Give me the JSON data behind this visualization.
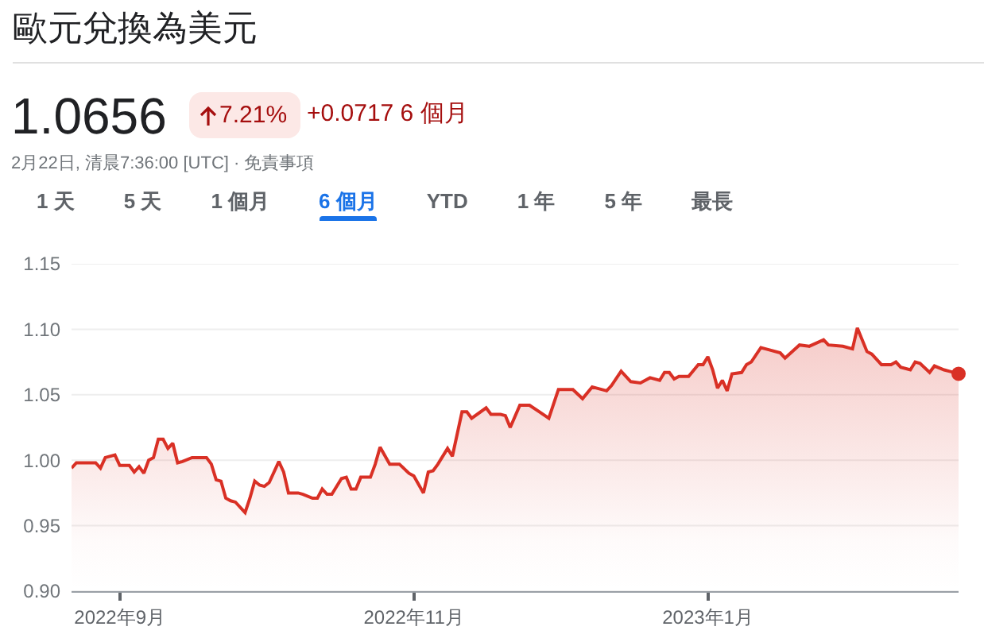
{
  "chart_data": {
    "type": "area",
    "title": "歐元兌換為美元",
    "annotations": [
      "1.0656",
      "7.21%",
      "+0.0717 6 個月",
      "2月22日, 清晨7:36:00 [UTC] · 免責事項",
      "1 天",
      "5 天",
      "1 個月",
      "6 個月",
      "YTD",
      "1 年",
      "5 年",
      "最長"
    ],
    "x": [
      "2022-08-22",
      "2022-08-23",
      "2022-08-24",
      "2022-08-27",
      "2022-08-28",
      "2022-08-29",
      "2022-08-31",
      "2022-09-01",
      "2022-09-03",
      "2022-09-04",
      "2022-09-05",
      "2022-09-06",
      "2022-09-07",
      "2022-09-08",
      "2022-09-09",
      "2022-09-10",
      "2022-09-11",
      "2022-09-12",
      "2022-09-13",
      "2022-09-14",
      "2022-09-16",
      "2022-09-18",
      "2022-09-19",
      "2022-09-20",
      "2022-09-21",
      "2022-09-22",
      "2022-09-23",
      "2022-09-24",
      "2022-09-25",
      "2022-09-27",
      "2022-09-28",
      "2022-09-29",
      "2022-09-30",
      "2022-10-01",
      "2022-10-02",
      "2022-10-04",
      "2022-10-05",
      "2022-10-06",
      "2022-10-08",
      "2022-10-09",
      "2022-10-11",
      "2022-10-12",
      "2022-10-13",
      "2022-10-14",
      "2022-10-15",
      "2022-10-17",
      "2022-10-18",
      "2022-10-19",
      "2022-10-20",
      "2022-10-21",
      "2022-10-23",
      "2022-10-24",
      "2022-10-25",
      "2022-10-27",
      "2022-10-29",
      "2022-10-31",
      "2022-11-01",
      "2022-11-03",
      "2022-11-04",
      "2022-11-05",
      "2022-11-06",
      "2022-11-08",
      "2022-11-09",
      "2022-11-11",
      "2022-11-12",
      "2022-11-13",
      "2022-11-16",
      "2022-11-17",
      "2022-11-19",
      "2022-11-20",
      "2022-11-21",
      "2022-11-23",
      "2022-11-25",
      "2022-11-27",
      "2022-11-29",
      "2022-12-01",
      "2022-12-04",
      "2022-12-06",
      "2022-12-08",
      "2022-12-09",
      "2022-12-11",
      "2022-12-12",
      "2022-12-14",
      "2022-12-16",
      "2022-12-18",
      "2022-12-20",
      "2022-12-22",
      "2022-12-23",
      "2022-12-24",
      "2022-12-25",
      "2022-12-26",
      "2022-12-28",
      "2022-12-30",
      "2022-12-31",
      "2023-01-01",
      "2023-01-02",
      "2023-01-03",
      "2023-01-04",
      "2023-01-05",
      "2023-01-06",
      "2023-01-08",
      "2023-01-09",
      "2023-01-10",
      "2023-01-12",
      "2023-01-13",
      "2023-01-16",
      "2023-01-17",
      "2023-01-20",
      "2023-01-22",
      "2023-01-25",
      "2023-01-26",
      "2023-01-29",
      "2023-01-31",
      "2023-02-01",
      "2023-02-03",
      "2023-02-04",
      "2023-02-06",
      "2023-02-08",
      "2023-02-09",
      "2023-02-10",
      "2023-02-12",
      "2023-02-13",
      "2023-02-14",
      "2023-02-16",
      "2023-02-17",
      "2023-02-19",
      "2023-02-20",
      "2023-02-22"
    ],
    "series": [
      {
        "color": "#d93025",
        "values": [
          0.994,
          0.998,
          0.998,
          0.998,
          0.994,
          1.002,
          1.004,
          0.996,
          0.996,
          0.991,
          0.995,
          0.99,
          1.0,
          1.002,
          1.016,
          1.016,
          1.009,
          1.013,
          0.998,
          0.999,
          1.002,
          1.002,
          1.002,
          0.997,
          0.985,
          0.984,
          0.971,
          0.969,
          0.968,
          0.96,
          0.971,
          0.984,
          0.981,
          0.98,
          0.983,
          0.999,
          0.991,
          0.975,
          0.975,
          0.974,
          0.971,
          0.971,
          0.978,
          0.974,
          0.974,
          0.986,
          0.987,
          0.978,
          0.978,
          0.987,
          0.987,
          0.997,
          1.01,
          0.997,
          0.997,
          0.99,
          0.988,
          0.975,
          0.991,
          0.992,
          0.997,
          1.009,
          1.003,
          1.037,
          1.037,
          1.032,
          1.04,
          1.035,
          1.035,
          1.034,
          1.025,
          1.042,
          1.042,
          1.037,
          1.032,
          1.054,
          1.054,
          1.047,
          1.056,
          1.055,
          1.053,
          1.057,
          1.068,
          1.06,
          1.059,
          1.063,
          1.061,
          1.067,
          1.067,
          1.062,
          1.064,
          1.064,
          1.073,
          1.073,
          1.079,
          1.069,
          1.055,
          1.061,
          1.053,
          1.066,
          1.067,
          1.073,
          1.075,
          1.086,
          1.085,
          1.082,
          1.078,
          1.088,
          1.087,
          1.092,
          1.088,
          1.087,
          1.085,
          1.101,
          1.083,
          1.081,
          1.073,
          1.073,
          1.075,
          1.071,
          1.069,
          1.075,
          1.074,
          1.067,
          1.072,
          1.069,
          1.068,
          1.066
        ]
      }
    ],
    "xlim": [
      "2022-08-22",
      "2023-02-22"
    ],
    "xticks": [
      {
        "value": "2022-09-01",
        "label": "2022年9月"
      },
      {
        "value": "2022-11-01",
        "label": "2022年11月"
      },
      {
        "value": "2023-01-01",
        "label": "2023年1月"
      }
    ],
    "ylim": [
      0.9,
      1.15
    ],
    "yticks": [
      {
        "value": 0.9,
        "label": "0.90"
      },
      0.95,
      {
        "value": 1.0,
        "label": "1.00"
      },
      1.05,
      {
        "value": 1.1,
        "label": "1.10"
      },
      1.15
    ],
    "grid": "y"
  }
}
